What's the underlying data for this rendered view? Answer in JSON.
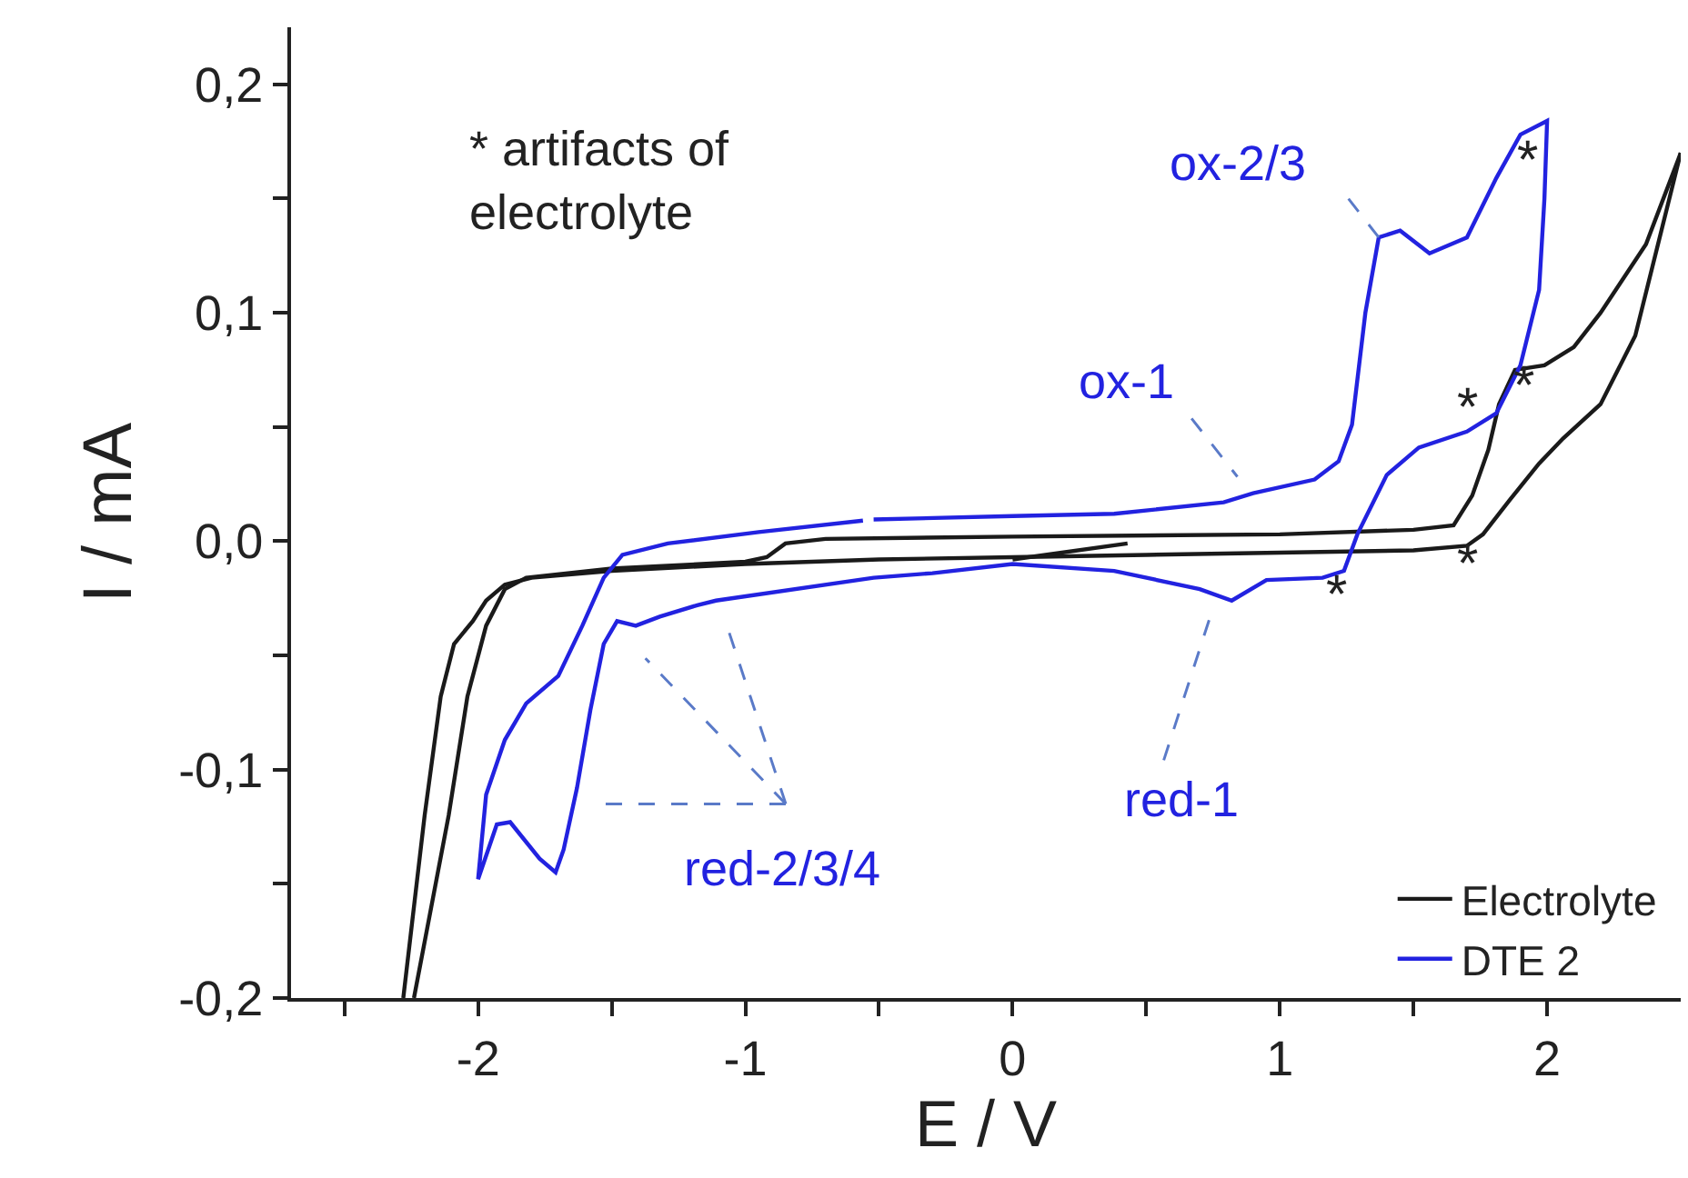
{
  "chart_data": {
    "type": "line",
    "xlabel": "E / V",
    "ylabel": "I / mA",
    "xlim": [
      -2.7,
      2.5
    ],
    "ylim": [
      -0.2,
      0.225
    ],
    "xticks": [
      {
        "value": -2.5,
        "label": null
      },
      -2,
      {
        "value": -1.5,
        "label": null
      },
      -1,
      {
        "value": -0.5,
        "label": null
      },
      0,
      {
        "value": 0.5,
        "label": null
      },
      1,
      {
        "value": 1.5,
        "label": null
      },
      2
    ],
    "yticks": [
      {
        "value": -0.2,
        "label": "-0,2"
      },
      {
        "value": -0.15,
        "label": null
      },
      {
        "value": -0.1,
        "label": "-0,1"
      },
      {
        "value": -0.05,
        "label": null
      },
      {
        "value": 0,
        "label": "0,0"
      },
      {
        "value": 0.05,
        "label": null
      },
      {
        "value": 0.1,
        "label": "0,1"
      },
      {
        "value": 0.15,
        "label": null
      },
      {
        "value": 0.2,
        "label": "0,2"
      }
    ],
    "grid": false,
    "legend": "bottom right",
    "marker": "none",
    "line_style": "solid",
    "series": [
      {
        "name": "Electrolyte",
        "color": "#1a1a1a",
        "x": [
          0,
          0.43,
          null,
          2.5,
          2.33,
          2.2,
          2.06,
          1.97,
          1.86,
          1.76,
          1.7,
          1.5,
          1.0,
          0.5,
          0,
          -0.5,
          -1.0,
          -1.5,
          -1.8,
          -1.9,
          -1.97,
          -2.02,
          -2.09,
          -2.14,
          -2.2,
          -2.28,
          null,
          -2.24,
          -2.11,
          -2.04,
          -1.97,
          -1.9,
          -1.82,
          -1.5,
          -1.0,
          -0.92,
          -0.85,
          -0.7,
          0,
          1.0,
          1.5,
          1.65,
          1.72,
          1.78,
          1.82,
          1.88,
          1.99,
          2.1,
          2.2,
          2.37,
          2.5
        ],
        "values": [
          -0.008,
          -0.001,
          null,
          0.17,
          0.09,
          0.06,
          0.045,
          0.034,
          0.018,
          0.003,
          -0.002,
          -0.004,
          -0.005,
          -0.006,
          -0.007,
          -0.008,
          -0.01,
          -0.013,
          -0.016,
          -0.019,
          -0.026,
          -0.035,
          -0.045,
          -0.068,
          -0.12,
          -0.2,
          null,
          -0.2,
          -0.12,
          -0.068,
          -0.037,
          -0.021,
          -0.016,
          -0.012,
          -0.009,
          -0.007,
          -0.001,
          0.001,
          0.002,
          0.003,
          0.005,
          0.007,
          0.02,
          0.04,
          0.06,
          0.075,
          0.077,
          0.085,
          0.1,
          0.13,
          0.17
        ]
      },
      {
        "name": "DTE 2",
        "color": "#2222e0",
        "x": [
          -0.52,
          0,
          0.38,
          0.79,
          0.9,
          1.13,
          1.22,
          1.27,
          1.32,
          1.37,
          1.45,
          1.56,
          1.7,
          1.81,
          1.9,
          2.0,
          1.99,
          1.97,
          1.9,
          1.81,
          1.7,
          1.52,
          1.4,
          1.29,
          1.24,
          1.16,
          0.95,
          0.82,
          0.7,
          0.38,
          0,
          -0.3,
          -0.52,
          -1.11,
          -1.18,
          -1.32,
          -1.41,
          -1.48,
          -1.53,
          -1.58,
          -1.63,
          -1.68,
          -1.71,
          -1.77,
          -1.88,
          -1.93,
          -2.0,
          -1.97,
          -1.9,
          -1.82,
          -1.7,
          -1.61,
          -1.53,
          -1.46,
          -1.29,
          -0.95,
          -0.56
        ],
        "values": [
          0.0095,
          0.011,
          0.012,
          0.017,
          0.021,
          0.027,
          0.035,
          0.051,
          0.1,
          0.133,
          0.136,
          0.126,
          0.133,
          0.159,
          0.178,
          0.184,
          0.15,
          0.11,
          0.077,
          0.056,
          0.048,
          0.041,
          0.029,
          0.003,
          -0.013,
          -0.016,
          -0.017,
          -0.026,
          -0.021,
          -0.013,
          -0.01,
          -0.014,
          -0.016,
          -0.026,
          -0.028,
          -0.033,
          -0.037,
          -0.035,
          -0.045,
          -0.074,
          -0.108,
          -0.135,
          -0.145,
          -0.139,
          -0.123,
          -0.124,
          -0.148,
          -0.111,
          -0.087,
          -0.071,
          -0.059,
          -0.037,
          -0.016,
          -0.006,
          -0.001,
          0.004,
          0.009
        ]
      }
    ],
    "annotations": [
      "* artifacts of\nelectrolyte",
      {
        "text": "ox-2/3",
        "x": 1.37,
        "y": 0.133
      },
      "ox-1",
      "red-1",
      "red-2/3/4",
      "*",
      "*",
      "*",
      "*",
      "*"
    ]
  }
}
